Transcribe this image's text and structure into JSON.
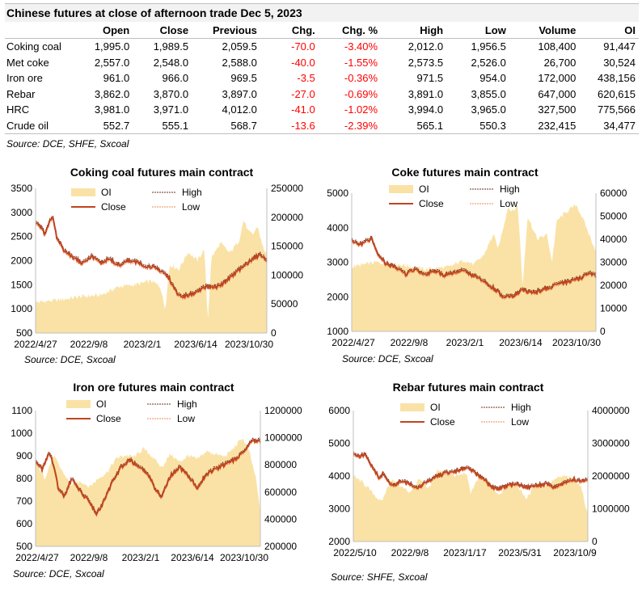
{
  "title": "Chinese futures at close of afternoon trade Dec 5, 2023",
  "table": {
    "columns": [
      "Open",
      "Close",
      "Previous",
      "Chg.",
      "Chg. %",
      "High",
      "Low",
      "Volume",
      "OI"
    ],
    "rows": [
      {
        "name": "Coking coal",
        "cells": [
          "1,995.0",
          "1,989.5",
          "2,059.5",
          "-70.0",
          "-3.40%",
          "2,012.0",
          "1,956.5",
          "108,400",
          "91,447"
        ]
      },
      {
        "name": "Met coke",
        "cells": [
          "2,557.0",
          "2,548.0",
          "2,588.0",
          "-40.0",
          "-1.55%",
          "2,573.5",
          "2,526.0",
          "26,700",
          "30,524"
        ]
      },
      {
        "name": "Iron ore",
        "cells": [
          "961.0",
          "966.0",
          "969.5",
          "-3.5",
          "-0.36%",
          "971.5",
          "954.0",
          "172,000",
          "438,156"
        ]
      },
      {
        "name": "Rebar",
        "cells": [
          "3,862.0",
          "3,870.0",
          "3,897.0",
          "-27.0",
          "-0.69%",
          "3,891.0",
          "3,855.0",
          "647,000",
          "620,615"
        ]
      },
      {
        "name": "HRC",
        "cells": [
          "3,981.0",
          "3,971.0",
          "4,012.0",
          "-41.0",
          "-1.02%",
          "3,994.0",
          "3,965.0",
          "327,500",
          "775,566"
        ]
      },
      {
        "name": "Crude oil",
        "cells": [
          "552.7",
          "555.1",
          "568.7",
          "-13.6",
          "-2.39%",
          "565.1",
          "550.3",
          "232,415",
          "34,477"
        ]
      }
    ],
    "source": "Source: DCE, SHFE, Sxcoal"
  },
  "colors": {
    "oi_fill": "#fae2a6",
    "close_line": "#c0441f",
    "high_line": "#6b2d1a",
    "low_line": "#ee8a55",
    "negative_text": "#ff0000",
    "title_band": "#f2f2f2"
  },
  "chart_data": [
    {
      "type": "line",
      "title": "Coking coal futures main contract",
      "x_ticks": [
        "2022/4/27",
        "2022/9/8",
        "2023/2/1",
        "2023/6/14",
        "2023/10/30"
      ],
      "x_range": [
        "2022-04-27",
        "2023-12-05"
      ],
      "y_left": {
        "range": [
          500,
          3500
        ],
        "ticks": [
          "3500",
          "3000",
          "2500",
          "2000",
          "1500",
          "1000",
          "500"
        ]
      },
      "y_right": {
        "range": [
          0,
          250000
        ],
        "ticks": [
          "250000",
          "200000",
          "150000",
          "100000",
          "50000",
          "0"
        ]
      },
      "legend": [
        "OI",
        "High",
        "Close",
        "Low"
      ],
      "source": "Source:  DCE, Sxcoal",
      "close": [
        [
          0,
          2800
        ],
        [
          0.02,
          2700
        ],
        [
          0.04,
          2550
        ],
        [
          0.06,
          2800
        ],
        [
          0.075,
          2920
        ],
        [
          0.09,
          2500
        ],
        [
          0.12,
          2230
        ],
        [
          0.16,
          2080
        ],
        [
          0.2,
          1960
        ],
        [
          0.24,
          2090
        ],
        [
          0.28,
          1960
        ],
        [
          0.32,
          2030
        ],
        [
          0.36,
          1900
        ],
        [
          0.4,
          2000
        ],
        [
          0.44,
          1960
        ],
        [
          0.48,
          1880
        ],
        [
          0.52,
          1850
        ],
        [
          0.55,
          1760
        ],
        [
          0.58,
          1620
        ],
        [
          0.6,
          1390
        ],
        [
          0.63,
          1250
        ],
        [
          0.66,
          1280
        ],
        [
          0.7,
          1340
        ],
        [
          0.74,
          1480
        ],
        [
          0.78,
          1440
        ],
        [
          0.82,
          1560
        ],
        [
          0.86,
          1720
        ],
        [
          0.9,
          1880
        ],
        [
          0.94,
          2040
        ],
        [
          0.97,
          2120
        ],
        [
          1.0,
          2000
        ]
      ],
      "oi": [
        [
          0,
          53000
        ],
        [
          0.1,
          57000
        ],
        [
          0.2,
          63000
        ],
        [
          0.28,
          65000
        ],
        [
          0.36,
          80000
        ],
        [
          0.44,
          84000
        ],
        [
          0.5,
          90000
        ],
        [
          0.54,
          80000
        ],
        [
          0.56,
          40000
        ],
        [
          0.58,
          118000
        ],
        [
          0.62,
          110000
        ],
        [
          0.66,
          140000
        ],
        [
          0.7,
          125000
        ],
        [
          0.73,
          145000
        ],
        [
          0.745,
          20000
        ],
        [
          0.76,
          130000
        ],
        [
          0.8,
          155000
        ],
        [
          0.84,
          138000
        ],
        [
          0.88,
          160000
        ],
        [
          0.9,
          195000
        ],
        [
          0.92,
          175000
        ],
        [
          0.94,
          170000
        ],
        [
          0.96,
          185000
        ],
        [
          0.98,
          152000
        ],
        [
          1.0,
          135000
        ]
      ]
    },
    {
      "type": "line",
      "title": "Coke futures main contract",
      "x_ticks": [
        "2022/4/27",
        "2022/9/8",
        "2023/2/1",
        "2023/6/14",
        "2023/10/30"
      ],
      "x_range": [
        "2022-04-27",
        "2023-12-05"
      ],
      "y_left": {
        "range": [
          1000,
          5000
        ],
        "ticks": [
          "5000",
          "4000",
          "3000",
          "2000",
          "1000"
        ]
      },
      "y_right": {
        "range": [
          0,
          60000
        ],
        "ticks": [
          "60000",
          "50000",
          "40000",
          "30000",
          "20000",
          "10000",
          "0"
        ]
      },
      "legend": [
        "OI",
        "High",
        "Close",
        "Low"
      ],
      "source": "Source:  DCE, Sxcoal",
      "close": [
        [
          0,
          3620
        ],
        [
          0.03,
          3500
        ],
        [
          0.06,
          3600
        ],
        [
          0.08,
          3700
        ],
        [
          0.1,
          3300
        ],
        [
          0.14,
          2950
        ],
        [
          0.18,
          2850
        ],
        [
          0.22,
          2650
        ],
        [
          0.26,
          2800
        ],
        [
          0.3,
          2650
        ],
        [
          0.34,
          2750
        ],
        [
          0.38,
          2620
        ],
        [
          0.42,
          2700
        ],
        [
          0.46,
          2750
        ],
        [
          0.5,
          2600
        ],
        [
          0.54,
          2450
        ],
        [
          0.58,
          2250
        ],
        [
          0.62,
          2000
        ],
        [
          0.66,
          2000
        ],
        [
          0.7,
          2200
        ],
        [
          0.74,
          2100
        ],
        [
          0.78,
          2200
        ],
        [
          0.82,
          2300
        ],
        [
          0.86,
          2400
        ],
        [
          0.9,
          2450
        ],
        [
          0.94,
          2550
        ],
        [
          0.97,
          2700
        ],
        [
          1.0,
          2600
        ]
      ],
      "oi": [
        [
          0,
          28000
        ],
        [
          0.1,
          30000
        ],
        [
          0.2,
          29000
        ],
        [
          0.3,
          27000
        ],
        [
          0.4,
          28000
        ],
        [
          0.46,
          31000
        ],
        [
          0.5,
          29000
        ],
        [
          0.54,
          33000
        ],
        [
          0.58,
          42000
        ],
        [
          0.6,
          36000
        ],
        [
          0.62,
          45000
        ],
        [
          0.64,
          54000
        ],
        [
          0.66,
          52000
        ],
        [
          0.68,
          55000
        ],
        [
          0.7,
          20000
        ],
        [
          0.72,
          50000
        ],
        [
          0.76,
          40000
        ],
        [
          0.8,
          42000
        ],
        [
          0.82,
          30000
        ],
        [
          0.84,
          48000
        ],
        [
          0.88,
          52000
        ],
        [
          0.92,
          55000
        ],
        [
          0.95,
          48000
        ],
        [
          0.98,
          40000
        ],
        [
          1.0,
          35000
        ]
      ]
    },
    {
      "type": "line",
      "title": "Iron ore futures main contract",
      "x_ticks": [
        "2022/4/27",
        "2022/9/8",
        "2023/2/1",
        "2023/6/14",
        "2023/10/30"
      ],
      "x_range": [
        "2022-04-27",
        "2023-12-05"
      ],
      "y_left": {
        "range": [
          500,
          1100
        ],
        "ticks": [
          "1100",
          "1000",
          "900",
          "800",
          "700",
          "600",
          "500"
        ]
      },
      "y_right": {
        "range": [
          200000,
          1200000
        ],
        "ticks": [
          "1200000",
          "1000000",
          "800000",
          "600000",
          "400000",
          "200000"
        ]
      },
      "legend": [
        "OI",
        "High",
        "Close",
        "Low"
      ],
      "source": "Source:  DCE, Sxcoal",
      "close": [
        [
          0,
          870
        ],
        [
          0.03,
          840
        ],
        [
          0.06,
          920
        ],
        [
          0.08,
          860
        ],
        [
          0.1,
          760
        ],
        [
          0.13,
          720
        ],
        [
          0.16,
          800
        ],
        [
          0.2,
          740
        ],
        [
          0.24,
          700
        ],
        [
          0.27,
          640
        ],
        [
          0.3,
          690
        ],
        [
          0.34,
          780
        ],
        [
          0.38,
          850
        ],
        [
          0.42,
          880
        ],
        [
          0.46,
          850
        ],
        [
          0.5,
          820
        ],
        [
          0.53,
          760
        ],
        [
          0.56,
          720
        ],
        [
          0.6,
          810
        ],
        [
          0.64,
          850
        ],
        [
          0.68,
          810
        ],
        [
          0.72,
          760
        ],
        [
          0.76,
          820
        ],
        [
          0.8,
          840
        ],
        [
          0.84,
          860
        ],
        [
          0.88,
          880
        ],
        [
          0.92,
          910
        ],
        [
          0.96,
          970
        ],
        [
          1.0,
          966
        ]
      ],
      "oi": [
        [
          0,
          830000
        ],
        [
          0.04,
          700000
        ],
        [
          0.08,
          870000
        ],
        [
          0.12,
          750000
        ],
        [
          0.16,
          650000
        ],
        [
          0.2,
          680000
        ],
        [
          0.24,
          640000
        ],
        [
          0.28,
          700000
        ],
        [
          0.32,
          750000
        ],
        [
          0.36,
          850000
        ],
        [
          0.4,
          870000
        ],
        [
          0.44,
          860000
        ],
        [
          0.48,
          920000
        ],
        [
          0.52,
          860000
        ],
        [
          0.56,
          780000
        ],
        [
          0.6,
          880000
        ],
        [
          0.64,
          820000
        ],
        [
          0.68,
          870000
        ],
        [
          0.72,
          840000
        ],
        [
          0.76,
          900000
        ],
        [
          0.8,
          880000
        ],
        [
          0.84,
          860000
        ],
        [
          0.88,
          920000
        ],
        [
          0.92,
          1000000
        ],
        [
          0.95,
          900000
        ],
        [
          0.98,
          700000
        ],
        [
          1.0,
          450000
        ]
      ]
    },
    {
      "type": "line",
      "title": "Rebar futures main contract",
      "x_ticks": [
        "2022/5/10",
        "2022/9/8",
        "2023/1/17",
        "2023/5/31",
        "2023/10/9"
      ],
      "x_range": [
        "2022-04-27",
        "2023-12-05"
      ],
      "y_left": {
        "range": [
          2000,
          6000
        ],
        "ticks": [
          "6000",
          "5000",
          "4000",
          "3000",
          "2000"
        ]
      },
      "y_right": {
        "range": [
          0,
          4000000
        ],
        "ticks": [
          "4000000",
          "3000000",
          "2000000",
          "1000000",
          "0"
        ]
      },
      "legend": [
        "OI",
        "High",
        "Close",
        "Low"
      ],
      "source": "Source:  SHFE, Sxcoal",
      "close": [
        [
          0,
          4700
        ],
        [
          0.03,
          4600
        ],
        [
          0.05,
          4650
        ],
        [
          0.07,
          4400
        ],
        [
          0.09,
          4200
        ],
        [
          0.11,
          3900
        ],
        [
          0.13,
          4100
        ],
        [
          0.15,
          3800
        ],
        [
          0.18,
          3700
        ],
        [
          0.2,
          3850
        ],
        [
          0.24,
          3750
        ],
        [
          0.28,
          3650
        ],
        [
          0.32,
          3850
        ],
        [
          0.36,
          4000
        ],
        [
          0.4,
          4100
        ],
        [
          0.44,
          4150
        ],
        [
          0.48,
          4250
        ],
        [
          0.52,
          4100
        ],
        [
          0.56,
          3900
        ],
        [
          0.58,
          3700
        ],
        [
          0.62,
          3600
        ],
        [
          0.66,
          3700
        ],
        [
          0.7,
          3750
        ],
        [
          0.74,
          3650
        ],
        [
          0.78,
          3700
        ],
        [
          0.82,
          3750
        ],
        [
          0.86,
          3650
        ],
        [
          0.9,
          3800
        ],
        [
          0.94,
          3900
        ],
        [
          0.97,
          3850
        ],
        [
          1.0,
          3870
        ]
      ],
      "oi": [
        [
          0,
          2000000
        ],
        [
          0.04,
          1800000
        ],
        [
          0.08,
          1500000
        ],
        [
          0.12,
          1200000
        ],
        [
          0.16,
          1900000
        ],
        [
          0.2,
          1700000
        ],
        [
          0.24,
          1500000
        ],
        [
          0.28,
          1900000
        ],
        [
          0.32,
          1600000
        ],
        [
          0.36,
          2200000
        ],
        [
          0.4,
          2100000
        ],
        [
          0.44,
          2000000
        ],
        [
          0.48,
          2100000
        ],
        [
          0.5,
          1500000
        ],
        [
          0.54,
          2000000
        ],
        [
          0.58,
          1800000
        ],
        [
          0.62,
          1400000
        ],
        [
          0.66,
          1800000
        ],
        [
          0.7,
          1700000
        ],
        [
          0.74,
          1300000
        ],
        [
          0.78,
          1800000
        ],
        [
          0.82,
          1700000
        ],
        [
          0.86,
          1900000
        ],
        [
          0.9,
          2000000
        ],
        [
          0.94,
          1900000
        ],
        [
          0.97,
          1700000
        ],
        [
          1.0,
          800000
        ]
      ]
    }
  ]
}
